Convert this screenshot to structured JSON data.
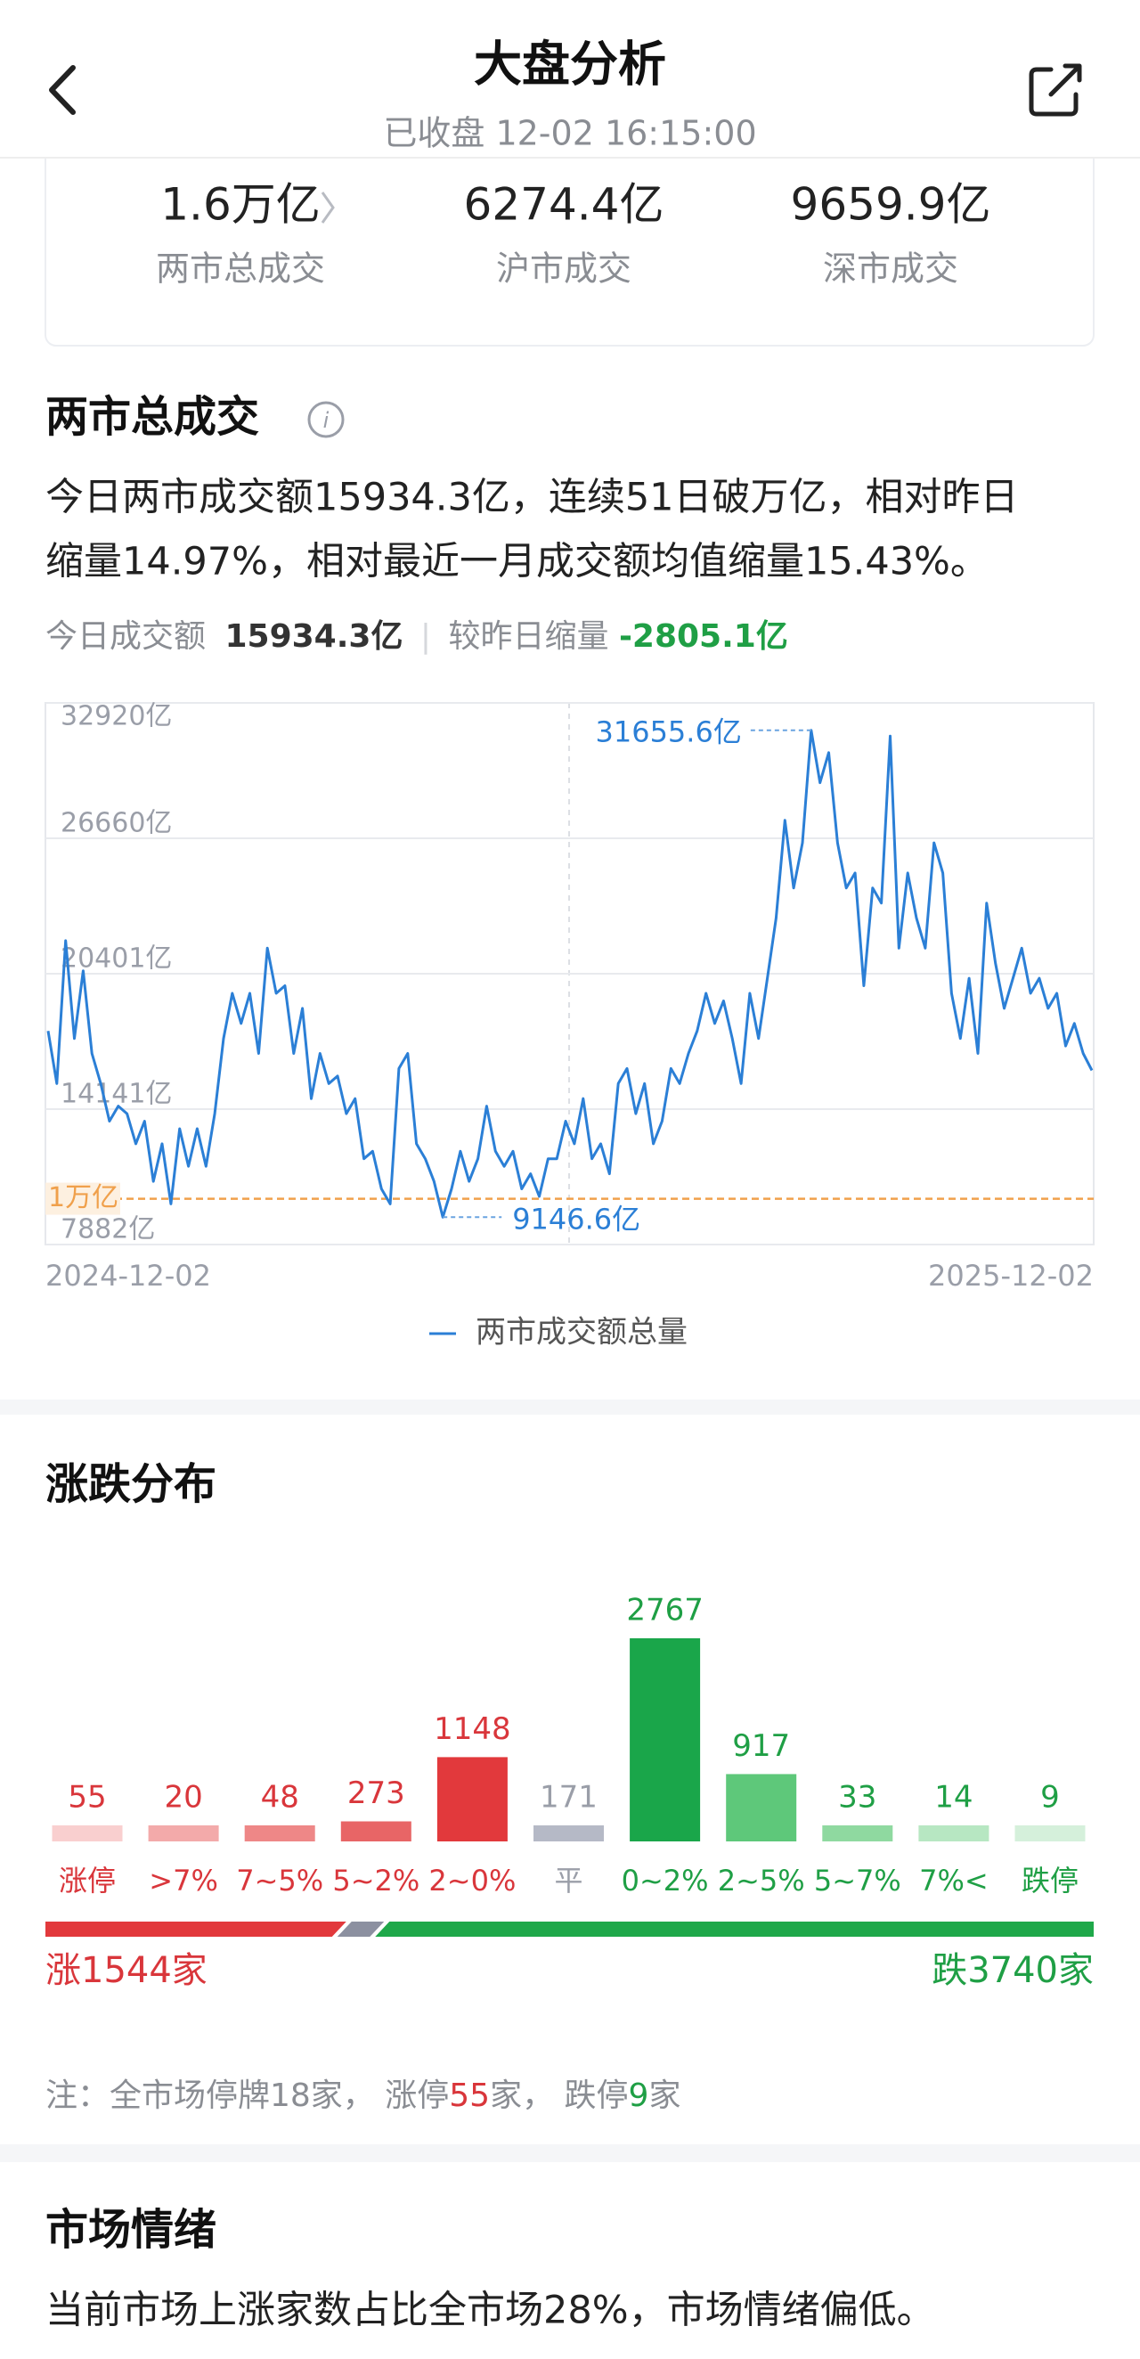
{
  "header": {
    "title": "大盘分析",
    "subtitle": "已收盘 12-02 16:15:00"
  },
  "summary": [
    {
      "value": "1.6万亿",
      "label": "两市总成交"
    },
    {
      "value": "6274.4亿",
      "label": "沪市成交"
    },
    {
      "value": "9659.9亿",
      "label": "深市成交"
    }
  ],
  "volume": {
    "title": "两市总成交",
    "paragraph": [
      "今日两市成交额15934.3亿，连续51日破万亿，相对昨日",
      "缩量14.97%，相对最近一月成交额均值缩量15.43%。"
    ],
    "stats": {
      "today_label": "今日成交额",
      "today_value": "15934.3亿",
      "change_label": "较昨日缩量",
      "change_value": "-2805.1亿"
    }
  },
  "distribution": {
    "title": "涨跌分布",
    "rise": {
      "label": "涨1544家",
      "value": 1544
    },
    "flat": 171,
    "fall": {
      "label": "跌3740家",
      "value": 3740
    },
    "note": [
      "注：全市场停牌18家， 涨停",
      "55",
      "家， 跌停",
      "9",
      "家"
    ]
  },
  "sentiment": {
    "title": "市场情绪",
    "text": "当前市场上涨家数占比全市场28%，市场情绪偏低。"
  },
  "chart_data": [
    {
      "type": "line",
      "categories": [
        "2024-12-02",
        null,
        null,
        null,
        null,
        null,
        null,
        null,
        null,
        null,
        null,
        null,
        null,
        null,
        null,
        null,
        null,
        null,
        null,
        null,
        null,
        null,
        null,
        null,
        null,
        null,
        null,
        null,
        null,
        null,
        null,
        null,
        null,
        null,
        null,
        null,
        null,
        null,
        null,
        null,
        null,
        null,
        null,
        null,
        null,
        null,
        null,
        null,
        null,
        null,
        null,
        null,
        null,
        null,
        null,
        null,
        null,
        null,
        null,
        null,
        null,
        null,
        null,
        null,
        null,
        null,
        null,
        null,
        null,
        null,
        null,
        null,
        null,
        null,
        null,
        null,
        null,
        null,
        null,
        null,
        null,
        null,
        null,
        null,
        null,
        null,
        null,
        null,
        null,
        null,
        null,
        null,
        null,
        null,
        null,
        null,
        null,
        null,
        null,
        null,
        null,
        null,
        null,
        null,
        null,
        null,
        null,
        null,
        null,
        null,
        null,
        null,
        null,
        null,
        null,
        null,
        null,
        null,
        null,
        "2025-12-02"
      ],
      "series": [
        {
          "name": "两市成交额总量",
          "color": "#2b7fd6",
          "values": [
            17757,
            15323,
            21929,
            17409,
            20538,
            16714,
            15323,
            13584,
            14280,
            13932,
            12541,
            13584,
            10803,
            12541,
            9760,
            13237,
            11498,
            13237,
            11498,
            13932,
            17409,
            19495,
            18104,
            19495,
            16714,
            21581,
            19495,
            19843,
            16714,
            18800,
            14627,
            16714,
            15323,
            15670,
            13932,
            14627,
            11846,
            12193,
            10455,
            9760,
            16018,
            16714,
            12541,
            11846,
            10803,
            9146.6,
            10455,
            12193,
            10803,
            11846,
            14280,
            12193,
            11498,
            12193,
            10455,
            11150,
            10107,
            11846,
            11846,
            13584,
            12541,
            14627,
            11846,
            12541,
            11150,
            15323,
            16018,
            13932,
            15323,
            12541,
            13584,
            16018,
            15323,
            16714,
            17757,
            19495,
            18104,
            19147,
            17409,
            15323,
            19495,
            17409,
            20191,
            22972,
            27492,
            24363,
            26449,
            31655.6,
            29231,
            30622,
            26449,
            24363,
            25058,
            19843,
            24363,
            23668,
            31387,
            21581,
            25058,
            22972,
            21581,
            26449,
            25058,
            19495,
            17409,
            20191,
            16714,
            23668,
            20886,
            18800,
            20191,
            21581,
            19495,
            20191,
            18800,
            19495,
            17061,
            18104,
            16714,
            15934.3
          ]
        }
      ],
      "ylim": [
        7882,
        32920
      ],
      "yticks": [
        {
          "value": 7882,
          "label": "7882亿"
        },
        {
          "value": 14141,
          "label": "14141亿"
        },
        {
          "value": 20401,
          "label": "20401亿"
        },
        {
          "value": 26660,
          "label": "26660亿"
        },
        {
          "value": 32920,
          "label": "32920亿"
        }
      ],
      "grid": true,
      "reference_line": {
        "value": 10000,
        "label": "1万亿",
        "color": "#f0a04b"
      },
      "annotations": [
        {
          "label": "31655.6亿",
          "value": 31655.6
        },
        {
          "label": "9146.6亿",
          "value": 9146.6
        }
      ],
      "legend": "bottom"
    },
    {
      "type": "bar",
      "categories": [
        "涨停",
        ">7%",
        "7~5%",
        "5~2%",
        "2~0%",
        "平",
        "0~2%",
        "2~5%",
        "5~7%",
        "7%<",
        "跌停"
      ],
      "values": [
        55,
        20,
        48,
        273,
        1148,
        171,
        2767,
        917,
        33,
        14,
        9
      ],
      "colors": [
        "#f9cfcf",
        "#f3aaaa",
        "#ee8787",
        "#e86566",
        "#e2393c",
        "#b5b9c6",
        "#1aa64a",
        "#5ec87a",
        "#8fd9a0",
        "#b7e7c2",
        "#d5f0db"
      ],
      "label_colors": [
        "#d9363b",
        "#d9363b",
        "#d9363b",
        "#d9363b",
        "#d9363b",
        "#9a9ea8",
        "#1f9f45",
        "#1f9f45",
        "#1f9f45",
        "#1f9f45",
        "#1f9f45"
      ]
    }
  ]
}
